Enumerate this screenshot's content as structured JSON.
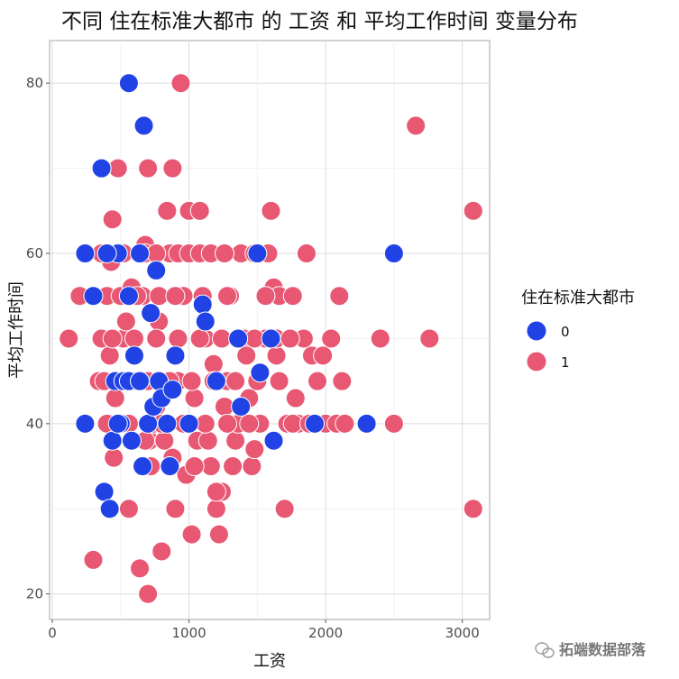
{
  "chart_data": {
    "type": "scatter",
    "title": "不同 住在标准大都市 的 工资 和 平均工作时间 变量分布",
    "xlabel": "工资",
    "ylabel": "平均工作时间",
    "xlim": [
      -20,
      3200
    ],
    "ylim": [
      17,
      85
    ],
    "xticks": [
      0,
      1000,
      2000,
      3000
    ],
    "yticks": [
      20,
      40,
      60,
      80
    ],
    "grid": true,
    "legend": {
      "title": "住在标准大都市",
      "placement": "right",
      "entries": [
        {
          "label": "0",
          "color": "#2143e6"
        },
        {
          "label": "1",
          "color": "#e85873"
        }
      ]
    },
    "series": [
      {
        "name": "1",
        "color": "#e85873",
        "points": [
          [
            120,
            50
          ],
          [
            200,
            55
          ],
          [
            300,
            24
          ],
          [
            340,
            45
          ],
          [
            360,
            50
          ],
          [
            400,
            55
          ],
          [
            420,
            48
          ],
          [
            430,
            59
          ],
          [
            440,
            64
          ],
          [
            450,
            36
          ],
          [
            460,
            43
          ],
          [
            470,
            40
          ],
          [
            480,
            70
          ],
          [
            500,
            55
          ],
          [
            520,
            50
          ],
          [
            540,
            52
          ],
          [
            560,
            30
          ],
          [
            580,
            56
          ],
          [
            600,
            48
          ],
          [
            620,
            45
          ],
          [
            640,
            23
          ],
          [
            660,
            55
          ],
          [
            680,
            61
          ],
          [
            700,
            20
          ],
          [
            710,
            38
          ],
          [
            720,
            35
          ],
          [
            740,
            40
          ],
          [
            760,
            42
          ],
          [
            780,
            52
          ],
          [
            800,
            25
          ],
          [
            820,
            38
          ],
          [
            840,
            65
          ],
          [
            860,
            60
          ],
          [
            880,
            70
          ],
          [
            900,
            30
          ],
          [
            920,
            45
          ],
          [
            940,
            80
          ],
          [
            960,
            55
          ],
          [
            980,
            34
          ],
          [
            1000,
            65
          ],
          [
            1020,
            27
          ],
          [
            1040,
            43
          ],
          [
            1060,
            38
          ],
          [
            1080,
            65
          ],
          [
            1100,
            55
          ],
          [
            1120,
            50
          ],
          [
            1140,
            38
          ],
          [
            1160,
            35
          ],
          [
            1180,
            47
          ],
          [
            1200,
            30
          ],
          [
            1220,
            27
          ],
          [
            1240,
            32
          ],
          [
            1260,
            42
          ],
          [
            1280,
            45
          ],
          [
            1300,
            55
          ],
          [
            1320,
            35
          ],
          [
            1340,
            38
          ],
          [
            1360,
            40
          ],
          [
            1380,
            60
          ],
          [
            1400,
            50
          ],
          [
            1420,
            48
          ],
          [
            1440,
            43
          ],
          [
            1460,
            35
          ],
          [
            1480,
            37
          ],
          [
            1500,
            45
          ],
          [
            1520,
            40
          ],
          [
            1560,
            50
          ],
          [
            1600,
            65
          ],
          [
            1620,
            56
          ],
          [
            1640,
            48
          ],
          [
            1660,
            55
          ],
          [
            1700,
            30
          ],
          [
            1720,
            40
          ],
          [
            1760,
            55
          ],
          [
            1780,
            43
          ],
          [
            1800,
            40
          ],
          [
            1840,
            50
          ],
          [
            1860,
            60
          ],
          [
            1900,
            48
          ],
          [
            1940,
            45
          ],
          [
            1980,
            48
          ],
          [
            2000,
            40
          ],
          [
            2040,
            50
          ],
          [
            2080,
            40
          ],
          [
            2100,
            55
          ],
          [
            2120,
            45
          ],
          [
            2140,
            40
          ],
          [
            2400,
            50
          ],
          [
            2500,
            40
          ],
          [
            2660,
            75
          ],
          [
            2760,
            50
          ],
          [
            3080,
            65
          ],
          [
            3080,
            30
          ],
          [
            400,
            40
          ],
          [
            560,
            40
          ],
          [
            800,
            40
          ],
          [
            960,
            40
          ],
          [
            1120,
            40
          ],
          [
            1280,
            40
          ],
          [
            1440,
            40
          ],
          [
            1760,
            40
          ],
          [
            1880,
            40
          ],
          [
            380,
            45
          ],
          [
            540,
            45
          ],
          [
            700,
            45
          ],
          [
            860,
            45
          ],
          [
            1020,
            45
          ],
          [
            1180,
            45
          ],
          [
            1340,
            45
          ],
          [
            1660,
            45
          ],
          [
            440,
            50
          ],
          [
            600,
            50
          ],
          [
            760,
            50
          ],
          [
            920,
            50
          ],
          [
            1080,
            50
          ],
          [
            1240,
            50
          ],
          [
            1480,
            50
          ],
          [
            1640,
            50
          ],
          [
            1740,
            50
          ],
          [
            360,
            60
          ],
          [
            520,
            60
          ],
          [
            680,
            60
          ],
          [
            760,
            60
          ],
          [
            920,
            60
          ],
          [
            1000,
            60
          ],
          [
            1080,
            60
          ],
          [
            1160,
            60
          ],
          [
            1260,
            60
          ],
          [
            1480,
            60
          ],
          [
            1580,
            60
          ],
          [
            620,
            55
          ],
          [
            780,
            55
          ],
          [
            900,
            55
          ],
          [
            1280,
            55
          ],
          [
            1560,
            55
          ],
          [
            360,
            70
          ],
          [
            700,
            70
          ],
          [
            680,
            38
          ],
          [
            880,
            36
          ],
          [
            1040,
            35
          ],
          [
            1200,
            32
          ]
        ]
      },
      {
        "name": "0",
        "color": "#2143e6",
        "points": [
          [
            240,
            40
          ],
          [
            240,
            60
          ],
          [
            300,
            55
          ],
          [
            360,
            70
          ],
          [
            380,
            32
          ],
          [
            420,
            30
          ],
          [
            440,
            38
          ],
          [
            460,
            45
          ],
          [
            480,
            60
          ],
          [
            500,
            40
          ],
          [
            520,
            45
          ],
          [
            560,
            55
          ],
          [
            560,
            80
          ],
          [
            580,
            38
          ],
          [
            600,
            48
          ],
          [
            620,
            45
          ],
          [
            640,
            60
          ],
          [
            660,
            35
          ],
          [
            670,
            75
          ],
          [
            700,
            40
          ],
          [
            720,
            53
          ],
          [
            740,
            42
          ],
          [
            760,
            58
          ],
          [
            780,
            45
          ],
          [
            800,
            43
          ],
          [
            840,
            40
          ],
          [
            860,
            35
          ],
          [
            880,
            44
          ],
          [
            900,
            48
          ],
          [
            1000,
            40
          ],
          [
            1100,
            54
          ],
          [
            1120,
            52
          ],
          [
            1200,
            45
          ],
          [
            1360,
            50
          ],
          [
            1380,
            42
          ],
          [
            1500,
            60
          ],
          [
            1520,
            46
          ],
          [
            1600,
            50
          ],
          [
            1620,
            38
          ],
          [
            1920,
            40
          ],
          [
            2300,
            40
          ],
          [
            2500,
            60
          ],
          [
            560,
            45
          ],
          [
            640,
            45
          ],
          [
            480,
            40
          ],
          [
            400,
            60
          ]
        ]
      }
    ]
  },
  "watermark": "拓端数据部落"
}
